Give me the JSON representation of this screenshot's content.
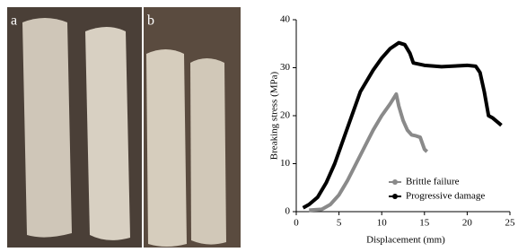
{
  "panels": {
    "a": "a",
    "b": "b"
  },
  "chart_data": {
    "type": "line",
    "xlabel": "Displacement (mm)",
    "ylabel": "Breaking stress (MPa)",
    "xlim": [
      0,
      25
    ],
    "xticks": [
      0,
      5,
      10,
      15,
      20,
      25
    ],
    "ylim": [
      0,
      40
    ],
    "yticks": [
      0,
      10,
      20,
      30,
      40
    ],
    "grid": false,
    "legend": "lower right",
    "series": [
      {
        "name": "Brittle failure",
        "color": "#8a8a8a",
        "x": [
          1.5,
          3,
          4,
          5,
          6,
          7,
          8,
          9,
          10,
          11,
          11.7,
          12,
          12.5,
          13,
          13.5,
          14,
          14.5,
          15,
          15.3
        ],
        "values": [
          0.3,
          0.5,
          1.5,
          3.5,
          6.5,
          10,
          13.5,
          17,
          20,
          22.5,
          24.5,
          22,
          19,
          17,
          16,
          15.8,
          15.5,
          13,
          12.5
        ]
      },
      {
        "name": "Progressive damage",
        "color": "#000000",
        "x": [
          0.8,
          1.5,
          2.5,
          3.5,
          4.5,
          5.5,
          6.5,
          7.5,
          8,
          9,
          10,
          11,
          12,
          12.7,
          13.3,
          13.7,
          15,
          17,
          19,
          20,
          21,
          21.5,
          22,
          22.5,
          23,
          24
        ],
        "values": [
          0.8,
          1.5,
          3,
          6,
          10,
          15,
          20,
          25,
          26.5,
          29.5,
          32,
          34,
          35.2,
          34.8,
          33,
          31,
          30.5,
          30.2,
          30.4,
          30.5,
          30.3,
          29,
          25,
          20,
          19.5,
          18
        ]
      }
    ]
  }
}
